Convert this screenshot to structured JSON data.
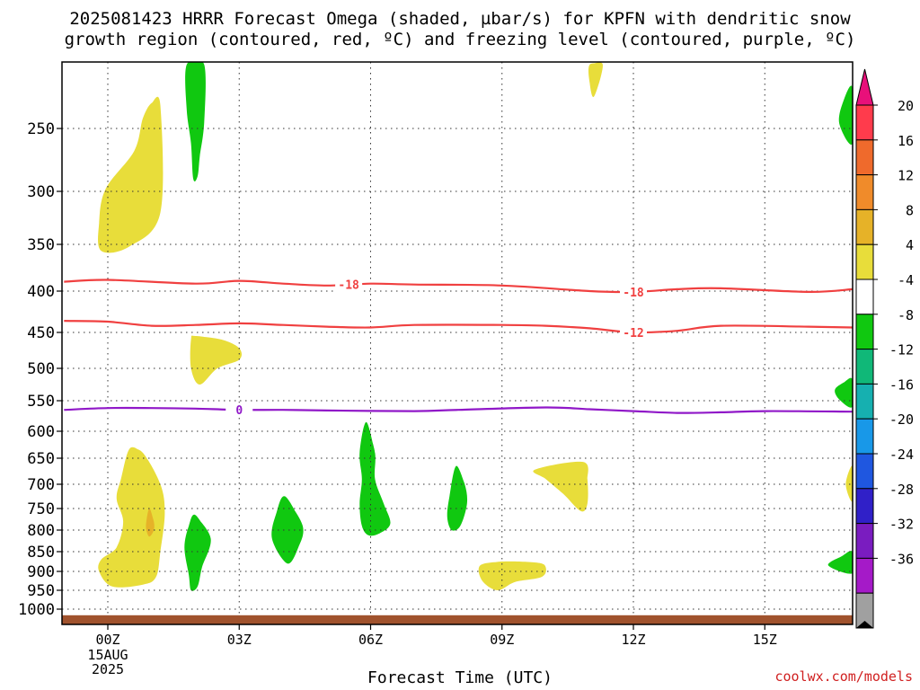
{
  "title": {
    "line1": "2025081423 HRRR Forecast Omega (shaded, µbar/s) for KPFN with dendritic snow",
    "line2": "growth region (contoured, red, ºC) and freezing level (contoured, purple, ºC)"
  },
  "credit": "coolwx.com/models",
  "chart_data": {
    "type": "heatmap",
    "xlabel": "Forecast Time (UTC)",
    "ylabel": "",
    "x_ticks": [
      "00Z",
      "03Z",
      "06Z",
      "09Z",
      "12Z",
      "15Z"
    ],
    "x_tick_hours": [
      1,
      4,
      7,
      10,
      13,
      16
    ],
    "x_sub_labels": [
      "15AUG",
      "2025"
    ],
    "xlim_hours": [
      0,
      18
    ],
    "y_scale": "pressure (hPa, inverted)",
    "y_ticks": [
      250,
      300,
      350,
      400,
      450,
      500,
      550,
      600,
      650,
      700,
      750,
      800,
      850,
      900,
      950,
      1000
    ],
    "ylim": [
      1030,
      200
    ],
    "colorbar": {
      "labels": [
        "20",
        "16",
        "12",
        "8",
        "4",
        "-4",
        "-8",
        "-12",
        "-16",
        "-20",
        "-24",
        "-28",
        "-32",
        "-36"
      ],
      "colors": [
        "#ff3b4c",
        "#ef6a2c",
        "#f08b2a",
        "#e6b228",
        "#e8dd3a",
        "#ffffff",
        "#10c810",
        "#10b878",
        "#16b0b0",
        "#1898e8",
        "#1f57e0",
        "#3020c8",
        "#7a1cc0",
        "#a51ac8",
        "#a0a0a0"
      ],
      "top_arrow_color": "#e8107a",
      "bottom_arrow_color": "#000000"
    },
    "contours": [
      {
        "name": "dgz_-18",
        "label": "-18",
        "color": "#f04040",
        "label_hours": [
          6.5,
          13.0
        ],
        "points": [
          [
            0,
            390
          ],
          [
            1,
            388
          ],
          [
            3,
            392
          ],
          [
            4,
            389
          ],
          [
            5,
            392
          ],
          [
            6,
            394
          ],
          [
            7,
            392
          ],
          [
            8,
            393
          ],
          [
            10,
            394
          ],
          [
            12,
            400
          ],
          [
            13,
            401
          ],
          [
            14,
            398
          ],
          [
            15,
            397
          ],
          [
            17,
            401
          ],
          [
            18,
            398
          ]
        ]
      },
      {
        "name": "dgz_-12",
        "label": "-12",
        "color": "#f04040",
        "label_hours": [
          13.0
        ],
        "points": [
          [
            0,
            436
          ],
          [
            1,
            437
          ],
          [
            2,
            442
          ],
          [
            3,
            441
          ],
          [
            4,
            439
          ],
          [
            5,
            441
          ],
          [
            6,
            443
          ],
          [
            7,
            444
          ],
          [
            8,
            441
          ],
          [
            10,
            441
          ],
          [
            11,
            442
          ],
          [
            12,
            445
          ],
          [
            13,
            450
          ],
          [
            14,
            448
          ],
          [
            15,
            442
          ],
          [
            17,
            443
          ],
          [
            18,
            444
          ]
        ]
      },
      {
        "name": "freezing_level_0",
        "label": "0",
        "color": "#9018c8",
        "label_hours": [
          4.0
        ],
        "points": [
          [
            0,
            565
          ],
          [
            1,
            562
          ],
          [
            2,
            562
          ],
          [
            3,
            563
          ],
          [
            4,
            565
          ],
          [
            5,
            565
          ],
          [
            6,
            566
          ],
          [
            8,
            567
          ],
          [
            9,
            565
          ],
          [
            11,
            561
          ],
          [
            12,
            564
          ],
          [
            13,
            567
          ],
          [
            14,
            570
          ],
          [
            15,
            569
          ],
          [
            16,
            567
          ],
          [
            18,
            568
          ]
        ]
      }
    ],
    "omega_regions": [
      {
        "value": 4,
        "color": "#e8dd3a",
        "points": [
          [
            2.0,
            230
          ],
          [
            2.2,
            232
          ],
          [
            2.2,
            320
          ],
          [
            1.5,
            352
          ],
          [
            0.85,
            357
          ],
          [
            0.8,
            330
          ],
          [
            0.95,
            298
          ],
          [
            1.6,
            268
          ],
          [
            1.8,
            242
          ]
        ]
      },
      {
        "value": -4,
        "color": "#10c810",
        "points": [
          [
            2.8,
            200
          ],
          [
            3.2,
            200
          ],
          [
            3.2,
            245
          ],
          [
            3.1,
            272
          ],
          [
            3.05,
            288
          ],
          [
            2.95,
            290
          ],
          [
            2.9,
            262
          ],
          [
            2.8,
            235
          ]
        ]
      },
      {
        "value": 4,
        "color": "#e8dd3a",
        "points": [
          [
            12.0,
            200
          ],
          [
            12.3,
            200
          ],
          [
            12.1,
            225
          ],
          [
            12.0,
            214
          ]
        ]
      },
      {
        "value": -4,
        "color": "#10c810",
        "points": [
          [
            18.0,
            218
          ],
          [
            18.0,
            262
          ],
          [
            17.7,
            246
          ],
          [
            17.8,
            228
          ]
        ]
      },
      {
        "value": 4,
        "color": "#e8dd3a",
        "points": [
          [
            3.0,
            455
          ],
          [
            3.6,
            460
          ],
          [
            4.0,
            472
          ],
          [
            4.0,
            488
          ],
          [
            3.5,
            500
          ],
          [
            3.1,
            525
          ],
          [
            2.9,
            500
          ],
          [
            2.9,
            460
          ]
        ]
      },
      {
        "value": -4,
        "color": "#10c810",
        "points": [
          [
            18.0,
            517
          ],
          [
            18.0,
            560
          ],
          [
            17.7,
            548
          ],
          [
            17.6,
            533
          ],
          [
            17.8,
            522
          ]
        ]
      },
      {
        "value": 4,
        "color": "#e8dd3a",
        "points": [
          [
            1.5,
            632
          ],
          [
            1.8,
            640
          ],
          [
            2.2,
            700
          ],
          [
            2.3,
            760
          ],
          [
            2.2,
            850
          ],
          [
            2.1,
            915
          ],
          [
            1.8,
            935
          ],
          [
            1.1,
            940
          ],
          [
            0.8,
            900
          ],
          [
            0.85,
            870
          ],
          [
            1.2,
            840
          ],
          [
            1.35,
            780
          ],
          [
            1.2,
            730
          ],
          [
            1.3,
            690
          ]
        ]
      },
      {
        "value": 8,
        "color": "#e6b228",
        "points": [
          [
            1.95,
            750
          ],
          [
            2.05,
            780
          ],
          [
            2.05,
            800
          ],
          [
            1.95,
            815
          ],
          [
            1.88,
            800
          ],
          [
            1.88,
            780
          ]
        ]
      },
      {
        "value": -4,
        "color": "#10c810",
        "points": [
          [
            3.0,
            765
          ],
          [
            3.35,
            820
          ],
          [
            3.15,
            890
          ],
          [
            3.05,
            940
          ],
          [
            2.9,
            950
          ],
          [
            2.85,
            910
          ],
          [
            2.75,
            840
          ],
          [
            2.85,
            790
          ]
        ]
      },
      {
        "value": -4,
        "color": "#10c810",
        "points": [
          [
            5.05,
            725
          ],
          [
            5.45,
            790
          ],
          [
            5.35,
            840
          ],
          [
            5.1,
            880
          ],
          [
            4.75,
            820
          ],
          [
            4.85,
            760
          ]
        ]
      },
      {
        "value": -4,
        "color": "#10c810",
        "points": [
          [
            6.9,
            585
          ],
          [
            7.1,
            640
          ],
          [
            7.1,
            690
          ],
          [
            7.3,
            740
          ],
          [
            7.45,
            785
          ],
          [
            7.2,
            808
          ],
          [
            6.95,
            812
          ],
          [
            6.8,
            790
          ],
          [
            6.75,
            740
          ],
          [
            6.8,
            690
          ],
          [
            6.75,
            640
          ]
        ]
      },
      {
        "value": -4,
        "color": "#10c810",
        "points": [
          [
            8.95,
            665
          ],
          [
            9.15,
            700
          ],
          [
            9.2,
            740
          ],
          [
            9.05,
            790
          ],
          [
            8.85,
            800
          ],
          [
            8.75,
            770
          ],
          [
            8.8,
            725
          ]
        ]
      },
      {
        "value": 4,
        "color": "#e8dd3a",
        "points": [
          [
            11.85,
            657
          ],
          [
            11.95,
            690
          ],
          [
            11.95,
            740
          ],
          [
            11.8,
            756
          ],
          [
            11.4,
            720
          ],
          [
            11.0,
            690
          ],
          [
            10.75,
            672
          ]
        ]
      },
      {
        "value": 4,
        "color": "#e8dd3a",
        "points": [
          [
            9.5,
            885
          ],
          [
            10.0,
            875
          ],
          [
            10.8,
            878
          ],
          [
            11.0,
            890
          ],
          [
            10.9,
            915
          ],
          [
            10.3,
            928
          ],
          [
            9.9,
            950
          ],
          [
            9.55,
            925
          ]
        ]
      },
      {
        "value": 4,
        "color": "#e8dd3a",
        "points": [
          [
            18.0,
            665
          ],
          [
            18.0,
            735
          ],
          [
            17.85,
            700
          ]
        ]
      },
      {
        "value": -4,
        "color": "#10c810",
        "points": [
          [
            18.0,
            850
          ],
          [
            18.0,
            905
          ],
          [
            17.45,
            885
          ],
          [
            17.75,
            862
          ]
        ]
      }
    ],
    "terrain": {
      "color": "#a0522d",
      "surface_pressure": 1012
    }
  }
}
